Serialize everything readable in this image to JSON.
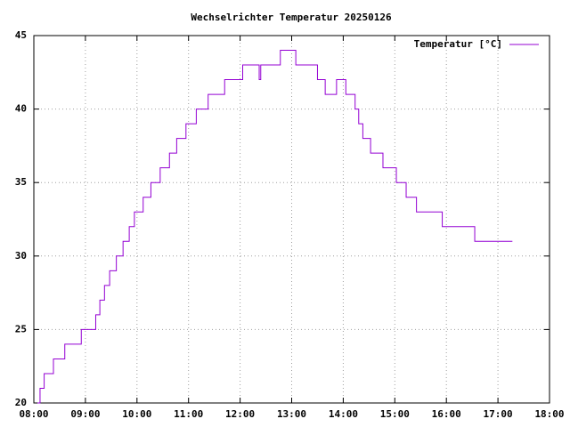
{
  "chart_data": {
    "type": "line",
    "title": "Wechselrichter Temperatur 20250126",
    "step": true,
    "grid": true,
    "legend": "top-right",
    "x": [
      8.07,
      8.12,
      8.2,
      8.38,
      8.6,
      8.92,
      9.2,
      9.28,
      9.37,
      9.47,
      9.6,
      9.73,
      9.85,
      9.95,
      10.12,
      10.27,
      10.45,
      10.63,
      10.77,
      10.95,
      11.15,
      11.38,
      11.7,
      12.05,
      12.37,
      12.4,
      12.78,
      13.08,
      13.5,
      13.65,
      13.87,
      14.05,
      14.23,
      14.3,
      14.38,
      14.53,
      14.77,
      15.03,
      15.22,
      15.42,
      15.92,
      16.55,
      17.28
    ],
    "series": [
      {
        "name": "Temperatur [°C]",
        "color": "#9400d3",
        "values": [
          20,
          21,
          22,
          23,
          24,
          25,
          26,
          27,
          28,
          29,
          30,
          31,
          32,
          33,
          34,
          35,
          36,
          37,
          38,
          39,
          40,
          41,
          42,
          43,
          42,
          43,
          44,
          43,
          42,
          41,
          42,
          41,
          40,
          39,
          38,
          37,
          36,
          35,
          34,
          33,
          32,
          31,
          31
        ]
      }
    ],
    "xlim": [
      8,
      18
    ],
    "xticks": [
      {
        "value": 8,
        "label": "08:00"
      },
      {
        "value": 9,
        "label": "09:00"
      },
      {
        "value": 10,
        "label": "10:00"
      },
      {
        "value": 11,
        "label": "11:00"
      },
      {
        "value": 12,
        "label": "12:00"
      },
      {
        "value": 13,
        "label": "13:00"
      },
      {
        "value": 14,
        "label": "14:00"
      },
      {
        "value": 15,
        "label": "15:00"
      },
      {
        "value": 16,
        "label": "16:00"
      },
      {
        "value": 17,
        "label": "17:00"
      },
      {
        "value": 18,
        "label": "18:00"
      }
    ],
    "ylim": [
      20,
      45
    ],
    "yticks": [
      20,
      25,
      30,
      35,
      40,
      45
    ]
  }
}
